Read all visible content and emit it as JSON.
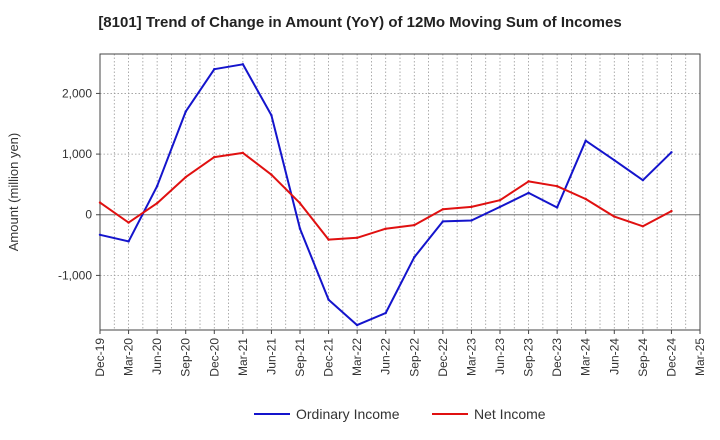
{
  "chart_data": {
    "type": "line",
    "title": "[8101]  Trend of Change in Amount (YoY) of 12Mo Moving Sum of Incomes",
    "xlabel": "",
    "ylabel": "Amount (million yen)",
    "ylim": [
      -1900,
      2650
    ],
    "grid": true,
    "legend_position": "bottom",
    "yticks": [
      -1000,
      0,
      1000,
      2000
    ],
    "ytick_labels": [
      "-1,000",
      "0",
      "1,000",
      "2,000"
    ],
    "categories": [
      "Dec-19",
      "Mar-20",
      "Jun-20",
      "Sep-20",
      "Dec-20",
      "Mar-21",
      "Jun-21",
      "Sep-21",
      "Dec-21",
      "Mar-22",
      "Jun-22",
      "Sep-22",
      "Dec-22",
      "Mar-23",
      "Jun-23",
      "Sep-23",
      "Dec-23",
      "Mar-24",
      "Jun-24",
      "Sep-24",
      "Dec-24",
      "Mar-25"
    ],
    "series": [
      {
        "name": "Ordinary Income",
        "color": "#1414cc",
        "values": [
          -330,
          -440,
          470,
          1700,
          2400,
          2480,
          1640,
          -230,
          -1400,
          -1820,
          -1620,
          -700,
          -110,
          -95,
          130,
          360,
          120,
          1220,
          900,
          570,
          1030,
          null
        ]
      },
      {
        "name": "Net Income",
        "color": "#e01010",
        "values": [
          200,
          -130,
          190,
          620,
          950,
          1020,
          660,
          190,
          -410,
          -380,
          -230,
          -170,
          90,
          130,
          240,
          550,
          470,
          260,
          -30,
          -190,
          60,
          null
        ]
      }
    ]
  }
}
